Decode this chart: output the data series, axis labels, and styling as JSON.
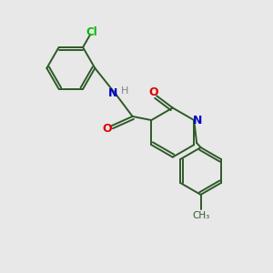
{
  "background_color": "#e8e8e8",
  "bond_color": "#2d5a27",
  "atom_colors": {
    "N": "#0000cc",
    "O": "#dd0000",
    "Cl": "#00bb00",
    "H": "#778877",
    "C": "#2d5a27"
  },
  "figsize": [
    3.0,
    3.0
  ],
  "dpi": 100
}
